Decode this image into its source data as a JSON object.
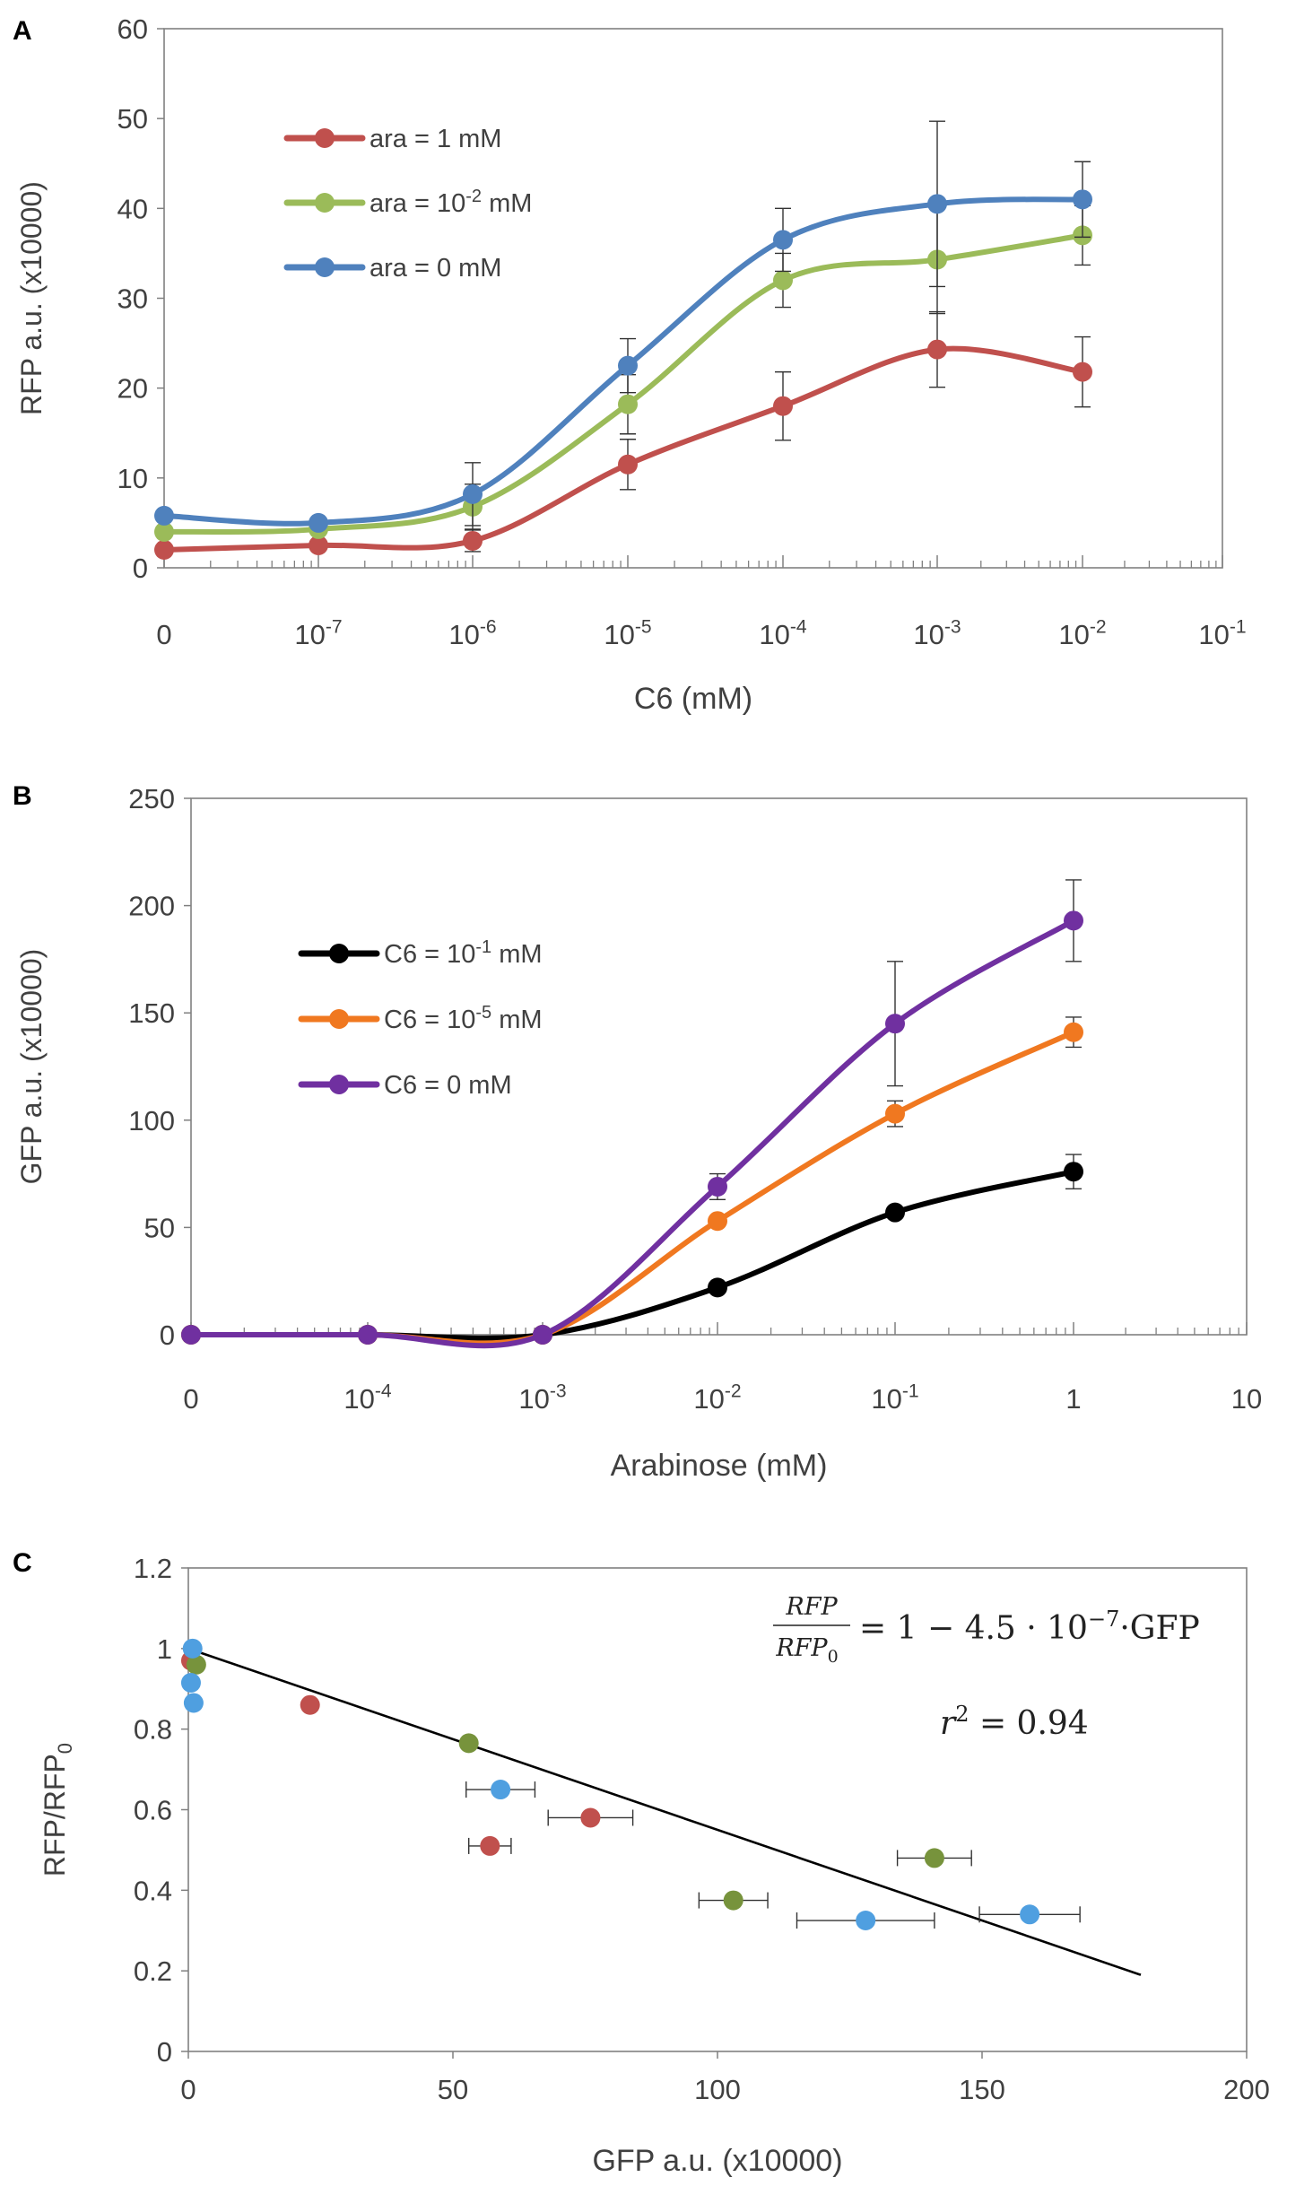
{
  "figure": {
    "panels": [
      "A",
      "B",
      "C"
    ]
  },
  "chart_data": [
    {
      "panel": "A",
      "type": "line",
      "xscale": "log",
      "xlabel": "C6 (mM)",
      "ylabel": "RFP a.u. (x10000)",
      "ylim": [
        0,
        60
      ],
      "yticks": [
        "0",
        "10",
        "20",
        "30",
        "40",
        "50",
        "60"
      ],
      "xtick_base": [
        "0",
        "10",
        "10",
        "10",
        "10",
        "10",
        "10",
        "10"
      ],
      "xtick_exp": [
        "",
        "-7",
        "-6",
        "-5",
        "-4",
        "-3",
        "-2",
        "-1"
      ],
      "x_positions": [
        0,
        1,
        2,
        3,
        4,
        5,
        6
      ],
      "legend": [
        {
          "base": "ara = 1 mM",
          "pre": "",
          "exp": "",
          "post": ""
        },
        {
          "base": "",
          "pre": "ara = 10",
          "exp": "-2",
          "post": " mM"
        },
        {
          "base": "ara = 0 mM",
          "pre": "",
          "exp": "",
          "post": ""
        }
      ],
      "legend_position": "top-left",
      "series": [
        {
          "name": "ara = 1 mM",
          "color": "#C0504D",
          "values": [
            2.0,
            2.5,
            3.0,
            11.5,
            18.0,
            24.3,
            21.8
          ],
          "errors": [
            0,
            0,
            1.2,
            2.8,
            3.8,
            4.2,
            3.9
          ]
        },
        {
          "name": "ara = 10^-2 mM",
          "color": "#9BBB59",
          "values": [
            4.0,
            4.3,
            6.8,
            18.2,
            32.0,
            34.3,
            37.0
          ],
          "errors": [
            0,
            0,
            2.5,
            3.3,
            3.0,
            6.0,
            3.3
          ]
        },
        {
          "name": "ara = 0 mM",
          "color": "#4F81BD",
          "values": [
            5.8,
            5.0,
            8.2,
            22.5,
            36.5,
            40.5,
            41.0
          ],
          "errors": [
            0,
            0,
            3.5,
            3.0,
            3.5,
            9.2,
            4.2
          ]
        }
      ]
    },
    {
      "panel": "B",
      "type": "line",
      "xscale": "log",
      "xlabel": "Arabinose (mM)",
      "ylabel": "GFP a.u. (x10000)",
      "ylim": [
        0,
        250
      ],
      "yticks": [
        "0",
        "50",
        "100",
        "150",
        "200",
        "250"
      ],
      "xtick_base": [
        "0",
        "10",
        "10",
        "10",
        "10",
        "1",
        "10"
      ],
      "xtick_exp": [
        "",
        "-4",
        "-3",
        "-2",
        "-1",
        "",
        ""
      ],
      "x_positions": [
        0,
        1,
        2,
        3,
        4,
        5
      ],
      "legend": [
        {
          "base": "",
          "pre": "C6 = 10",
          "exp": "-1",
          "post": " mM"
        },
        {
          "base": "",
          "pre": "C6 = 10",
          "exp": "-5",
          "post": " mM"
        },
        {
          "base": "C6 = 0 mM",
          "pre": "",
          "exp": "",
          "post": ""
        }
      ],
      "legend_position": "top-left",
      "series": [
        {
          "name": "C6 = 10^-1 mM",
          "color": "#000000",
          "values": [
            0,
            0,
            0,
            22,
            57,
            76
          ],
          "errors": [
            0,
            0,
            0,
            0,
            0,
            8
          ]
        },
        {
          "name": "C6 = 10^-5 mM",
          "color": "#F07820",
          "values": [
            0,
            0,
            0,
            53,
            103,
            141
          ],
          "errors": [
            0,
            0,
            0,
            0,
            6,
            7
          ]
        },
        {
          "name": "C6 = 0 mM",
          "color": "#7030A0",
          "values": [
            0,
            0,
            0,
            69,
            145,
            193
          ],
          "errors": [
            0,
            0,
            0,
            6,
            29,
            19
          ]
        }
      ]
    },
    {
      "panel": "C",
      "type": "scatter",
      "xlabel": "GFP a.u. (x10000)",
      "ylabel": "RFP/RFP",
      "ylabel_sub": "0",
      "xlim": [
        0,
        200
      ],
      "ylim": [
        0,
        1.2
      ],
      "xticks": [
        "0",
        "50",
        "100",
        "150",
        "200"
      ],
      "yticks": [
        "0",
        "0.2",
        "0.4",
        "0.6",
        "0.8",
        "1",
        "1.2"
      ],
      "equation": {
        "num": "RFP",
        "den": "RFP",
        "den_sub": "0",
        "rhs_pre": "= 1 − 4.5 · 10",
        "rhs_exp": "−7",
        "rhs_post": "·GFP",
        "r2_label": "r",
        "r2_exp": "2",
        "r2_value": " = 0.94"
      },
      "fit_line": {
        "slope": -0.0045,
        "intercept": 1.0,
        "x_range": [
          0,
          180
        ]
      },
      "series": [
        {
          "name": "ara = 1 mM",
          "color": "#C0504D",
          "points": [
            {
              "x": 0.5,
              "y": 0.97,
              "xerr": 0
            },
            {
              "x": 23,
              "y": 0.86,
              "xerr": 0
            },
            {
              "x": 57,
              "y": 0.51,
              "xerr": 4
            },
            {
              "x": 76,
              "y": 0.58,
              "xerr": 8
            }
          ]
        },
        {
          "name": "ara = 10^-2 mM",
          "color": "#77933C",
          "points": [
            {
              "x": 1.5,
              "y": 0.96,
              "xerr": 0
            },
            {
              "x": 53,
              "y": 0.765,
              "xerr": 0
            },
            {
              "x": 103,
              "y": 0.375,
              "xerr": 6.5
            },
            {
              "x": 141,
              "y": 0.48,
              "xerr": 7
            }
          ]
        },
        {
          "name": "ara = 0 mM",
          "color": "#4F9FE0",
          "points": [
            {
              "x": 0.8,
              "y": 1.0,
              "xerr": 0
            },
            {
              "x": 0.5,
              "y": 0.915,
              "xerr": 0
            },
            {
              "x": 1.0,
              "y": 0.865,
              "xerr": 0
            },
            {
              "x": 59,
              "y": 0.65,
              "xerr": 6.5
            },
            {
              "x": 128,
              "y": 0.325,
              "xerr": 13
            },
            {
              "x": 159,
              "y": 0.34,
              "xerr": 9.5
            }
          ]
        }
      ]
    }
  ]
}
